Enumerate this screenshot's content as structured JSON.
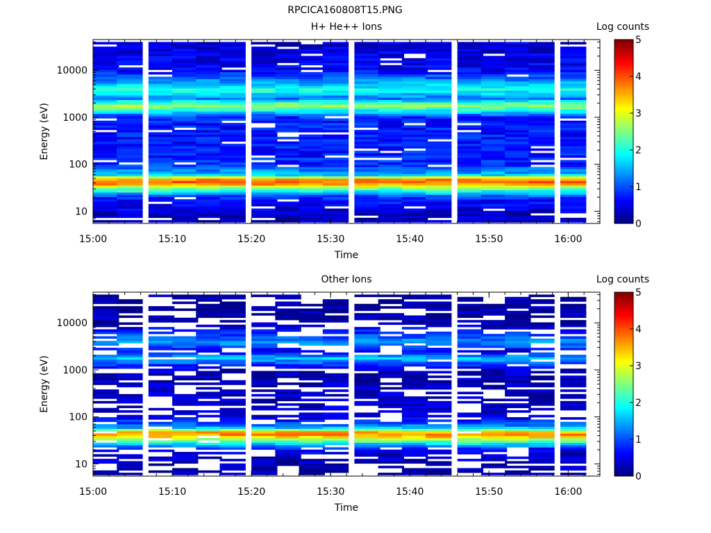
{
  "figure_title": "RPCICA160808T15.PNG",
  "chart_data": [
    {
      "type": "heatmap",
      "title": "H+ He++ Ions",
      "xlabel": "Time",
      "ylabel": "Energy (eV)",
      "xlim": [
        "15:00",
        "16:04"
      ],
      "ylim": [
        5.5,
        45000
      ],
      "yscale": "log",
      "x_ticks": [
        "15:00",
        "15:10",
        "15:20",
        "15:30",
        "15:40",
        "15:50",
        "16:00"
      ],
      "y_ticks": [
        "10",
        "100",
        "1000",
        "10000"
      ],
      "colorbar": {
        "label": "Log counts",
        "min": 0,
        "max": 5,
        "ticks": [
          "0",
          "1",
          "2",
          "3",
          "4",
          "5"
        ],
        "colormap": "jet"
      },
      "time_bins": [
        "15:00",
        "15:03",
        "15:07",
        "15:10",
        "15:13",
        "15:16",
        "15:20",
        "15:23",
        "15:26",
        "15:29",
        "15:33",
        "15:36",
        "15:39",
        "15:42",
        "15:46",
        "15:49",
        "15:52",
        "15:55",
        "15:59"
      ],
      "energy_profile_log_counts": [
        {
          "energy_ev": 8,
          "value": 0.3
        },
        {
          "energy_ev": 12,
          "value": 0.5
        },
        {
          "energy_ev": 20,
          "value": 0.8
        },
        {
          "energy_ev": 30,
          "value": 2.4
        },
        {
          "energy_ev": 40,
          "value": 3.9
        },
        {
          "energy_ev": 48,
          "value": 3.7
        },
        {
          "energy_ev": 60,
          "value": 1.6
        },
        {
          "energy_ev": 100,
          "value": 0.8
        },
        {
          "energy_ev": 500,
          "value": 0.7
        },
        {
          "energy_ev": 1000,
          "value": 0.8
        },
        {
          "energy_ev": 1800,
          "value": 2.7
        },
        {
          "energy_ev": 2500,
          "value": 1.2
        },
        {
          "energy_ev": 3800,
          "value": 2.0
        },
        {
          "energy_ev": 10000,
          "value": 0.6
        },
        {
          "energy_ev": 35000,
          "value": 0.4
        }
      ]
    },
    {
      "type": "heatmap",
      "title": "Other Ions",
      "xlabel": "Time",
      "ylabel": "Energy (eV)",
      "xlim": [
        "15:00",
        "16:04"
      ],
      "ylim": [
        5.5,
        45000
      ],
      "yscale": "log",
      "x_ticks": [
        "15:00",
        "15:10",
        "15:20",
        "15:30",
        "15:40",
        "15:50",
        "16:00"
      ],
      "y_ticks": [
        "10",
        "100",
        "1000",
        "10000"
      ],
      "colorbar": {
        "label": "Log counts",
        "min": 0,
        "max": 5,
        "ticks": [
          "0",
          "1",
          "2",
          "3",
          "4",
          "5"
        ],
        "colormap": "jet"
      },
      "time_bins": [
        "15:00",
        "15:03",
        "15:07",
        "15:10",
        "15:13",
        "15:16",
        "15:20",
        "15:23",
        "15:26",
        "15:29",
        "15:33",
        "15:36",
        "15:39",
        "15:42",
        "15:46",
        "15:49",
        "15:52",
        "15:55",
        "15:59"
      ],
      "energy_profile_log_counts": [
        {
          "energy_ev": 8,
          "value": 0.2
        },
        {
          "energy_ev": 12,
          "value": 0.3
        },
        {
          "energy_ev": 20,
          "value": 0.5
        },
        {
          "energy_ev": 30,
          "value": 2.2
        },
        {
          "energy_ev": 40,
          "value": 3.7
        },
        {
          "energy_ev": 48,
          "value": 3.5
        },
        {
          "energy_ev": 60,
          "value": 1.4
        },
        {
          "energy_ev": 100,
          "value": 0.4
        },
        {
          "energy_ev": 500,
          "value": 0.3
        },
        {
          "energy_ev": 1000,
          "value": 0.3
        },
        {
          "energy_ev": 1800,
          "value": 1.6
        },
        {
          "energy_ev": 2500,
          "value": 0.5
        },
        {
          "energy_ev": 3800,
          "value": 1.4
        },
        {
          "energy_ev": 10000,
          "value": 0.2
        },
        {
          "energy_ev": 35000,
          "value": 0.1
        }
      ]
    }
  ]
}
